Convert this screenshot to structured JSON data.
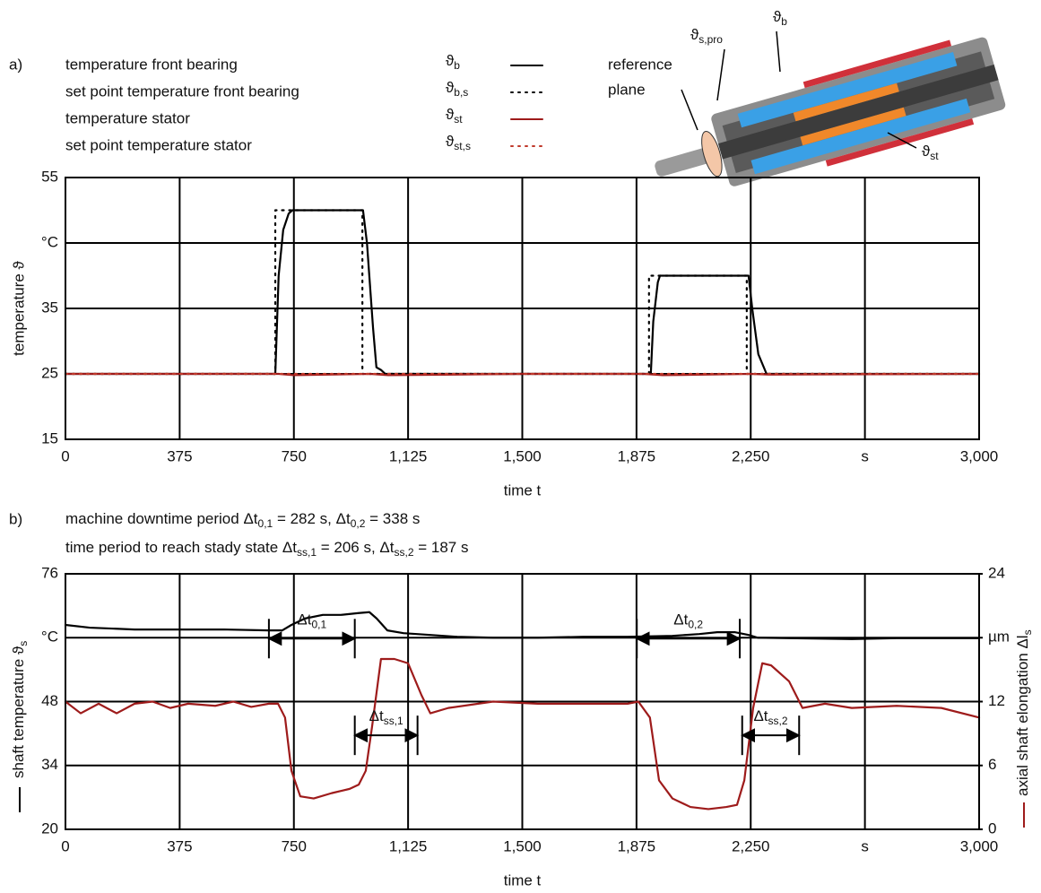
{
  "chart_data": [
    {
      "type": "line",
      "panel_label": "a)",
      "xlabel": "time t",
      "ylabel": "temperature ϑ",
      "xlim": [
        0,
        3000
      ],
      "xticks": [
        0,
        375,
        750,
        {
          "value": 1125,
          "label": "1,125"
        },
        {
          "value": 1500,
          "label": "1,500"
        },
        {
          "value": 1875,
          "label": "1,875"
        },
        {
          "value": 2250,
          "label": "2,250"
        },
        {
          "value": 2625,
          "label": "s"
        },
        {
          "value": 3000,
          "label": "3,000"
        }
      ],
      "ylim": [
        15,
        55
      ],
      "yticks": [
        15,
        25,
        35,
        {
          "value": 45,
          "label": "°C"
        },
        55
      ],
      "grid": true,
      "series": [
        {
          "name": "temperature front bearing",
          "symbol": {
            "text": "ϑ",
            "subscript": "b"
          },
          "color": "#000000",
          "dash": "solid",
          "x": [
            0,
            689,
            700,
            715,
            733,
            745,
            977,
            990,
            1010,
            1021,
            1036,
            1050,
            1100,
            1922,
            1930,
            1945,
            1952,
            1965,
            2243,
            2255,
            2275,
            2302,
            2320,
            3000
          ],
          "values": [
            25,
            25,
            40,
            47,
            49.5,
            50,
            50,
            45,
            32,
            26,
            25.6,
            25,
            25,
            25,
            33,
            39,
            40,
            40,
            40,
            35,
            28,
            25,
            25,
            25
          ]
        },
        {
          "name": "set point temperature front bearing",
          "symbol": {
            "text": "ϑ",
            "subscript": "b,s"
          },
          "color": "#000000",
          "dash": "dotted",
          "x": [
            0,
            689,
            689,
            975,
            975,
            1916,
            1916,
            2237,
            2237,
            3000
          ],
          "values": [
            25,
            25,
            50,
            50,
            25,
            25,
            40,
            40,
            25,
            25
          ]
        },
        {
          "name": "temperature stator",
          "symbol": {
            "text": "ϑ",
            "subscript": "st"
          },
          "color": "#9e1b1b",
          "dash": "solid",
          "x": [
            0,
            700,
            750,
            1000,
            1060,
            1500,
            1900,
            1960,
            2250,
            2310,
            3000
          ],
          "values": [
            25,
            25,
            24.8,
            25,
            24.8,
            25,
            25,
            24.8,
            25,
            24.9,
            25
          ]
        },
        {
          "name": "set point temperature stator",
          "symbol": {
            "text": "ϑ",
            "subscript": "st,s"
          },
          "color": "#c0392b",
          "dash": "dotted",
          "x": [
            0,
            3000
          ],
          "values": [
            25,
            25
          ]
        }
      ],
      "illustration": {
        "reference_label": [
          "reference",
          "plane"
        ],
        "labels": [
          {
            "text": "ϑ",
            "subscript": "s,pro"
          },
          {
            "text": "ϑ",
            "subscript": "b"
          },
          {
            "text": "ϑ",
            "subscript": "st"
          }
        ]
      }
    },
    {
      "type": "line",
      "panel_label": "b)",
      "xlabel": "time t",
      "subtitle": [
        [
          {
            "text": "machine downtime period Δt"
          },
          {
            "sub": "0,1"
          },
          {
            "text": " = 282 s, Δt"
          },
          {
            "sub": "0,2"
          },
          {
            "text": " = 338 s"
          }
        ],
        [
          {
            "text": "time period to reach stady state Δt"
          },
          {
            "sub": "ss,1"
          },
          {
            "text": " = 206 s, Δt"
          },
          {
            "sub": "ss,2"
          },
          {
            "text": " = 187 s"
          }
        ]
      ],
      "ylabel": {
        "text": "shaft temperature ϑ",
        "subscript": "s"
      },
      "y2label": {
        "text": "axial shaft elongation Δl",
        "subscript": "s"
      },
      "xlim": [
        0,
        3000
      ],
      "xticks": [
        0,
        375,
        750,
        {
          "value": 1125,
          "label": "1,125"
        },
        {
          "value": 1500,
          "label": "1,500"
        },
        {
          "value": 1875,
          "label": "1,875"
        },
        {
          "value": 2250,
          "label": "2,250"
        },
        {
          "value": 2625,
          "label": "s"
        },
        {
          "value": 3000,
          "label": "3,000"
        }
      ],
      "ylim": [
        20,
        76
      ],
      "yticks": [
        20,
        34,
        48,
        {
          "value": 62,
          "label": "°C"
        },
        76
      ],
      "y2lim": [
        0,
        24
      ],
      "y2ticks": [
        0,
        6,
        12,
        {
          "value": 18,
          "label": "µm"
        },
        24
      ],
      "grid": true,
      "series": [
        {
          "color": "#000000",
          "dash": "solid",
          "x": [
            0,
            80,
            227,
            374,
            521,
            668,
            712,
            742,
            786,
            845,
            904,
            963,
            998,
            1022,
            1057,
            1110,
            1198,
            1286,
            1404,
            1551,
            1699,
            1846,
            1993,
            2081,
            2140,
            2199,
            2243,
            2273,
            2376,
            2582,
            2729,
            2876,
            3000
          ],
          "values": [
            64.8,
            64.2,
            63.8,
            63.8,
            63.8,
            63.6,
            63.6,
            64.8,
            66.2,
            67.0,
            67.0,
            67.4,
            67.6,
            66.2,
            63.6,
            63.0,
            62.6,
            62.2,
            62.0,
            62.0,
            62.2,
            62.2,
            62.4,
            62.8,
            63.2,
            63.2,
            62.6,
            62.0,
            61.9,
            61.7,
            61.9,
            61.9,
            61.9
          ]
        },
        {
          "color": "#9e1b1b",
          "dash": "solid",
          "axis": "y2",
          "x": [
            0,
            50,
            109,
            168,
            227,
            286,
            344,
            403,
            492,
            551,
            610,
            668,
            698,
            721,
            742,
            771,
            815,
            874,
            933,
            963,
            986,
            1007,
            1036,
            1080,
            1125,
            1169,
            1198,
            1257,
            1404,
            1551,
            1699,
            1846,
            1881,
            1919,
            1949,
            1993,
            2052,
            2111,
            2170,
            2205,
            2229,
            2258,
            2288,
            2317,
            2376,
            2420,
            2494,
            2582,
            2729,
            2876,
            3000
          ],
          "values": [
            12.0,
            10.9,
            11.8,
            10.9,
            11.8,
            12.0,
            11.4,
            11.8,
            11.6,
            12.0,
            11.5,
            11.8,
            11.8,
            10.5,
            5.5,
            3.1,
            2.9,
            3.4,
            3.8,
            4.2,
            5.5,
            9.7,
            16.0,
            16.0,
            15.6,
            12.6,
            10.9,
            11.4,
            12.0,
            11.8,
            11.8,
            11.8,
            12.0,
            10.5,
            4.6,
            2.9,
            2.1,
            1.9,
            2.1,
            2.3,
            4.6,
            11.4,
            15.6,
            15.4,
            13.9,
            11.4,
            11.8,
            11.4,
            11.6,
            11.4,
            10.5
          ]
        }
      ],
      "annotations": [
        {
          "label": {
            "text": "Δt",
            "subscript": "0,1"
          },
          "x": [
            668,
            950
          ],
          "y": 61.8
        },
        {
          "label": {
            "text": "Δt",
            "subscript": "ss,1"
          },
          "x": [
            950,
            1156
          ],
          "y": 40.6
        },
        {
          "label": {
            "text": "Δt",
            "subscript": "0,2"
          },
          "x": [
            1876,
            2214
          ],
          "y": 61.8
        },
        {
          "label": {
            "text": "Δt",
            "subscript": "ss,2"
          },
          "x": [
            2222,
            2409
          ],
          "y": 40.6
        }
      ]
    }
  ]
}
